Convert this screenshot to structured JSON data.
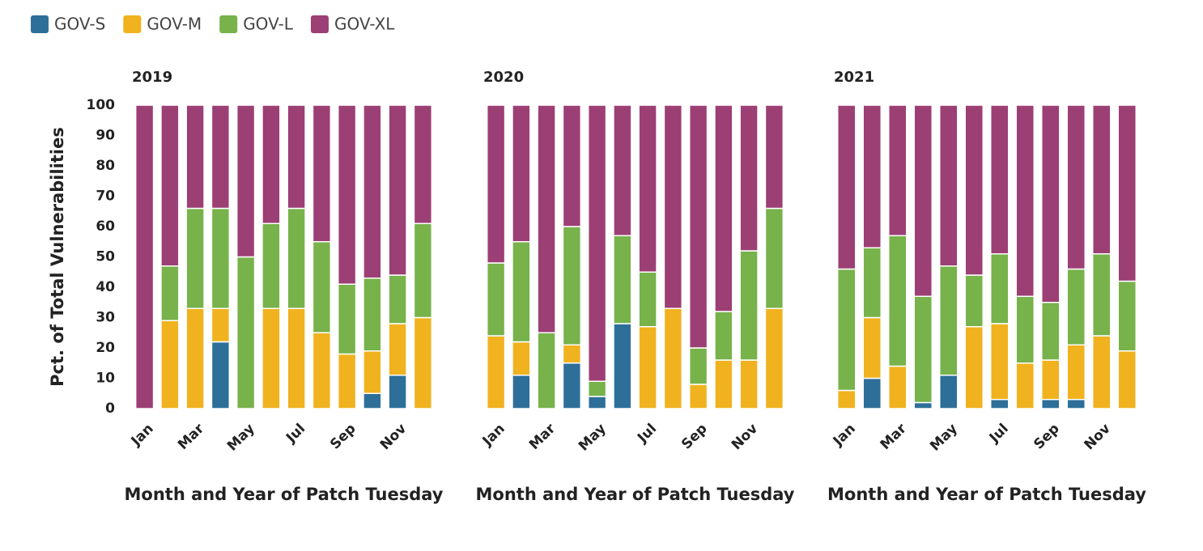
{
  "chart_data": [
    {
      "type": "bar",
      "stacked": true,
      "title": "2019",
      "xlabel": "Month and Year of Patch Tuesday",
      "ylabel": "Pct. of Total Vulnerabilities",
      "legend": "top-left",
      "categories": [
        "Jan",
        null,
        "Mar",
        null,
        "May",
        null,
        "Jul",
        null,
        "Sep",
        null,
        "Nov",
        null
      ],
      "ylim": [
        0,
        100
      ],
      "yticks": [
        0,
        10,
        20,
        30,
        40,
        50,
        60,
        70,
        80,
        90,
        100
      ],
      "series": [
        {
          "name": "GOV-S",
          "color": "#2e6f9a",
          "values": [
            0,
            0,
            0,
            22,
            0,
            0,
            0,
            0,
            0,
            5,
            11,
            0
          ]
        },
        {
          "name": "GOV-M",
          "color": "#f0b21e",
          "values": [
            0,
            29,
            33,
            11,
            0,
            33,
            33,
            25,
            18,
            14,
            17,
            30
          ]
        },
        {
          "name": "GOV-L",
          "color": "#77b24b",
          "values": [
            0,
            18,
            33,
            33,
            50,
            28,
            33,
            30,
            23,
            24,
            16,
            31
          ]
        },
        {
          "name": "GOV-XL",
          "color": "#9c3f74",
          "values": [
            100,
            53,
            34,
            34,
            50,
            39,
            34,
            45,
            59,
            57,
            56,
            39
          ]
        }
      ]
    },
    {
      "type": "bar",
      "stacked": true,
      "title": "2020",
      "xlabel": "Month and Year of Patch Tuesday",
      "categories": [
        "Jan",
        null,
        "Mar",
        null,
        "May",
        null,
        "Jul",
        null,
        "Sep",
        null,
        "Nov",
        null
      ],
      "ylim": [
        0,
        100
      ],
      "series": [
        {
          "name": "GOV-S",
          "color": "#2e6f9a",
          "values": [
            0,
            11,
            0,
            15,
            4,
            28,
            0,
            0,
            0,
            0,
            0,
            0
          ]
        },
        {
          "name": "GOV-M",
          "color": "#f0b21e",
          "values": [
            24,
            11,
            0,
            6,
            0,
            0,
            27,
            33,
            8,
            16,
            16,
            33
          ]
        },
        {
          "name": "GOV-L",
          "color": "#77b24b",
          "values": [
            24,
            33,
            25,
            39,
            5,
            29,
            18,
            0,
            12,
            16,
            36,
            33
          ]
        },
        {
          "name": "GOV-XL",
          "color": "#9c3f74",
          "values": [
            52,
            45,
            75,
            40,
            91,
            43,
            55,
            67,
            80,
            68,
            48,
            34
          ]
        }
      ]
    },
    {
      "type": "bar",
      "stacked": true,
      "title": "2021",
      "xlabel": "Month and Year of Patch Tuesday",
      "categories": [
        "Jan",
        null,
        "Mar",
        null,
        "May",
        null,
        "Jul",
        null,
        "Sep",
        null,
        "Nov",
        null
      ],
      "ylim": [
        0,
        100
      ],
      "series": [
        {
          "name": "GOV-S",
          "color": "#2e6f9a",
          "values": [
            0,
            10,
            0,
            2,
            11,
            0,
            3,
            0,
            3,
            3,
            0,
            0
          ]
        },
        {
          "name": "GOV-M",
          "color": "#f0b21e",
          "values": [
            6,
            20,
            14,
            0,
            0,
            27,
            25,
            15,
            13,
            18,
            24,
            19
          ]
        },
        {
          "name": "GOV-L",
          "color": "#77b24b",
          "values": [
            40,
            23,
            43,
            35,
            36,
            17,
            23,
            22,
            19,
            25,
            27,
            23
          ]
        },
        {
          "name": "GOV-XL",
          "color": "#9c3f74",
          "values": [
            54,
            47,
            43,
            63,
            53,
            56,
            49,
            63,
            65,
            54,
            49,
            58
          ]
        }
      ]
    }
  ]
}
